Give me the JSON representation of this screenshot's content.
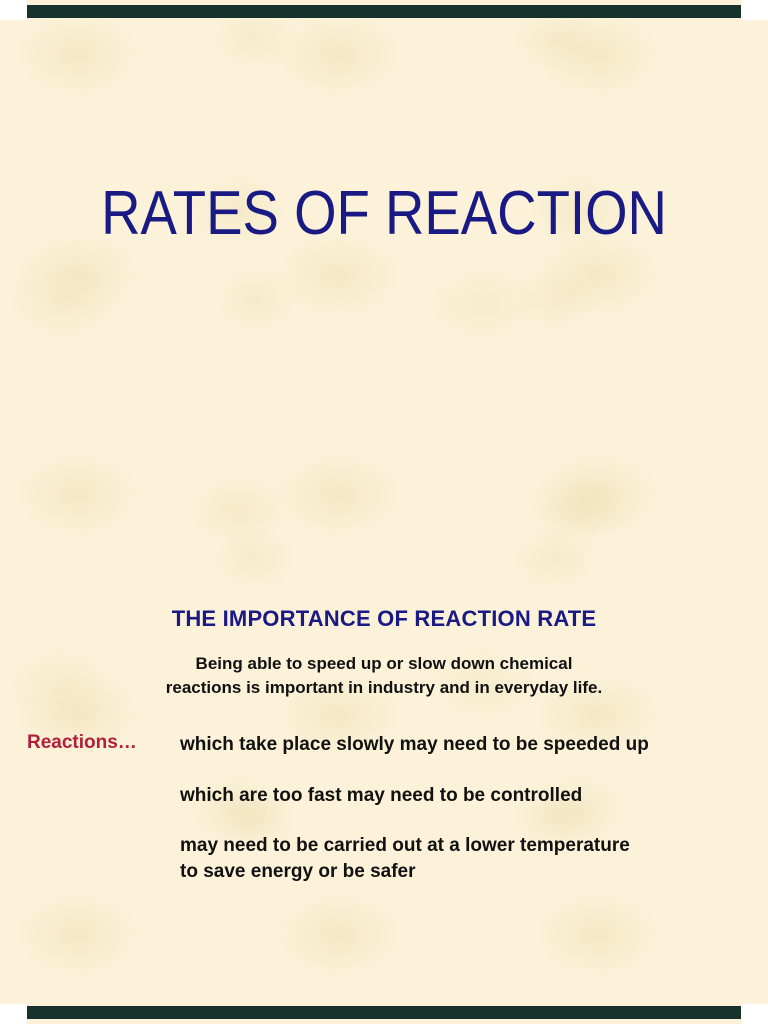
{
  "colors": {
    "background": "#fbf2d9",
    "border_bar": "#15322d",
    "title_navy": "#1a1a85",
    "label_red": "#b0203a",
    "body_black": "#111111"
  },
  "slide_title": {
    "text": "RATES OF REACTION"
  },
  "section": {
    "heading": "THE IMPORTANCE OF REACTION RATE",
    "intro": "Being able to speed up or slow down chemical\nreactions is important in industry and in everyday life.",
    "label": "Reactions…",
    "points": [
      "which take place slowly may need to be speeded up",
      "which are too fast may need to be controlled",
      "may need to be carried out at a lower temperature\nto save energy or be safer"
    ]
  }
}
